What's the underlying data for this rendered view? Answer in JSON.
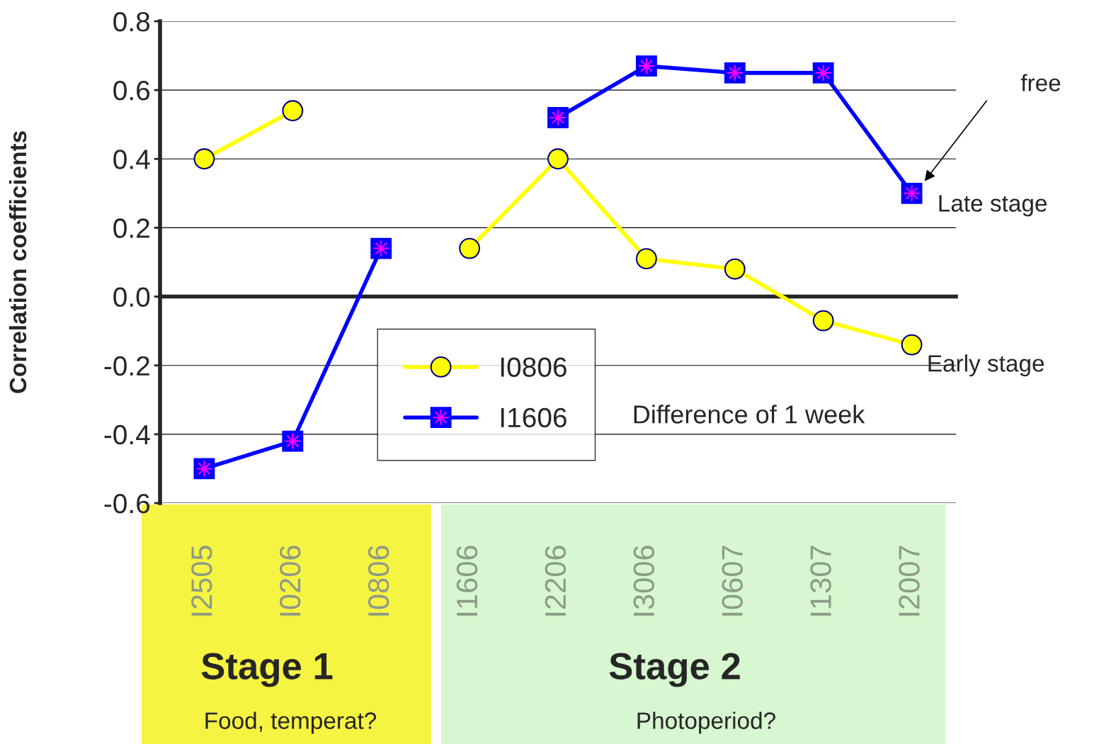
{
  "chart_data": {
    "type": "line",
    "ylabel": "Correlation coefficients",
    "categories": [
      "I2505",
      "I0206",
      "I0806",
      "I1606",
      "I2206",
      "I3006",
      "I0607",
      "I1307",
      "I2007"
    ],
    "series": [
      {
        "name": "I0806",
        "color": "#ffff00",
        "marker": "circle",
        "values": [
          0.4,
          0.54,
          null,
          0.14,
          0.4,
          0.11,
          0.08,
          -0.07,
          -0.14
        ]
      },
      {
        "name": "I1606",
        "color": "#0000ff",
        "marker": "square",
        "values": [
          -0.5,
          -0.42,
          0.14,
          null,
          0.52,
          0.67,
          0.65,
          0.65,
          0.3
        ]
      }
    ],
    "ylim": [
      -0.6,
      0.8
    ],
    "yticks": [
      {
        "value": -0.6,
        "label": "-0.6"
      },
      {
        "value": -0.4,
        "label": "-0.4"
      },
      {
        "value": -0.2,
        "label": "-0.2"
      },
      {
        "value": 0,
        "label": "0.0"
      },
      {
        "value": 0.2,
        "label": "0.2"
      },
      {
        "value": 0.4,
        "label": "0.4"
      },
      {
        "value": 0.6,
        "label": "0.6"
      },
      {
        "value": 0.8,
        "label": "0.8"
      }
    ],
    "grid": "y",
    "legend": "bottom",
    "line_style": "solid",
    "annotations": [
      "free",
      {
        "text": "Late stage",
        "x": "I2007",
        "y": 0.3
      },
      {
        "text": "Early stage",
        "x": "I2007",
        "y": -0.14
      },
      "Difference of 1 week",
      "Stage 1",
      "Food, temperat?",
      "Stage 2",
      "Photoperiod?"
    ]
  }
}
